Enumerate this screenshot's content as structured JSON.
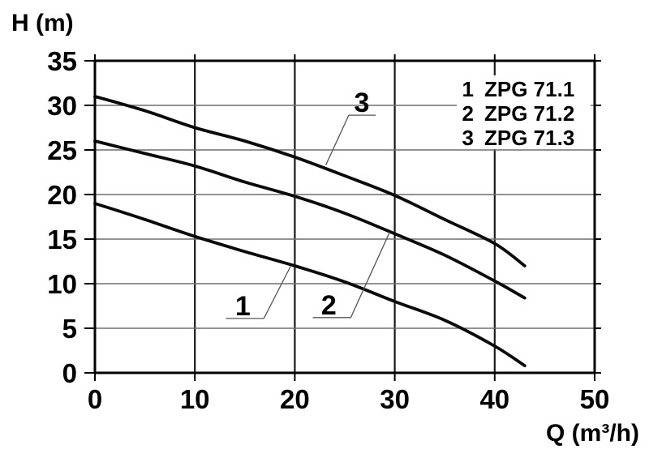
{
  "chart_data": {
    "type": "line",
    "title": "",
    "xlabel": "Q (m³/h)",
    "ylabel": "H (m)",
    "xlim": [
      0,
      50
    ],
    "ylim": [
      0,
      35
    ],
    "x_ticks": [
      0,
      10,
      20,
      30,
      40,
      50
    ],
    "y_ticks": [
      0,
      5,
      10,
      15,
      20,
      25,
      30,
      35
    ],
    "grid": "on",
    "legend_position": "top-right-inside",
    "x": [
      0,
      5,
      10,
      15,
      20,
      25,
      30,
      35,
      40,
      43
    ],
    "series": [
      {
        "number": "1",
        "name": "ZPG 71.1",
        "values": [
          19,
          17.2,
          15.3,
          13.6,
          12,
          10.2,
          8,
          5.9,
          3,
          0.8
        ]
      },
      {
        "number": "2",
        "name": "ZPG 71.2",
        "values": [
          26,
          24.6,
          23.2,
          21.4,
          19.8,
          17.9,
          15.6,
          13.2,
          10.3,
          8.4
        ]
      },
      {
        "number": "3",
        "name": "ZPG 71.3",
        "values": [
          31,
          29.4,
          27.5,
          26,
          24.2,
          22.1,
          19.9,
          17.2,
          14.5,
          12
        ]
      }
    ],
    "legend": [
      {
        "number": "1",
        "label": "ZPG 71.1"
      },
      {
        "number": "2",
        "label": "ZPG 71.2"
      },
      {
        "number": "3",
        "label": "ZPG 71.3"
      }
    ],
    "annotations": [
      {
        "label": "1",
        "label_q": 14.8,
        "underline_q1": 13.1,
        "underline_q2": 16.9,
        "underline_h": 6.1,
        "leader_from": "right",
        "target_q": 19.6,
        "target_h": 12.0
      },
      {
        "label": "2",
        "label_q": 23.4,
        "underline_q1": 21.8,
        "underline_q2": 25.6,
        "underline_h": 6.2,
        "leader_from": "right",
        "target_q": 29.5,
        "target_h": 15.8
      },
      {
        "label": "3",
        "label_q": 26.7,
        "underline_q1": 25.4,
        "underline_q2": 28.1,
        "underline_h": 28.9,
        "leader_from": "left",
        "target_q": 23.1,
        "target_h": 23.3
      }
    ],
    "colors": {
      "curve": "#0a0a0a",
      "grid_h": "#6e6e6e",
      "grid_v": "#1a1a1a",
      "frame": "#000000",
      "leader": "#555555",
      "text": "#000000",
      "background": "#ffffff"
    }
  }
}
